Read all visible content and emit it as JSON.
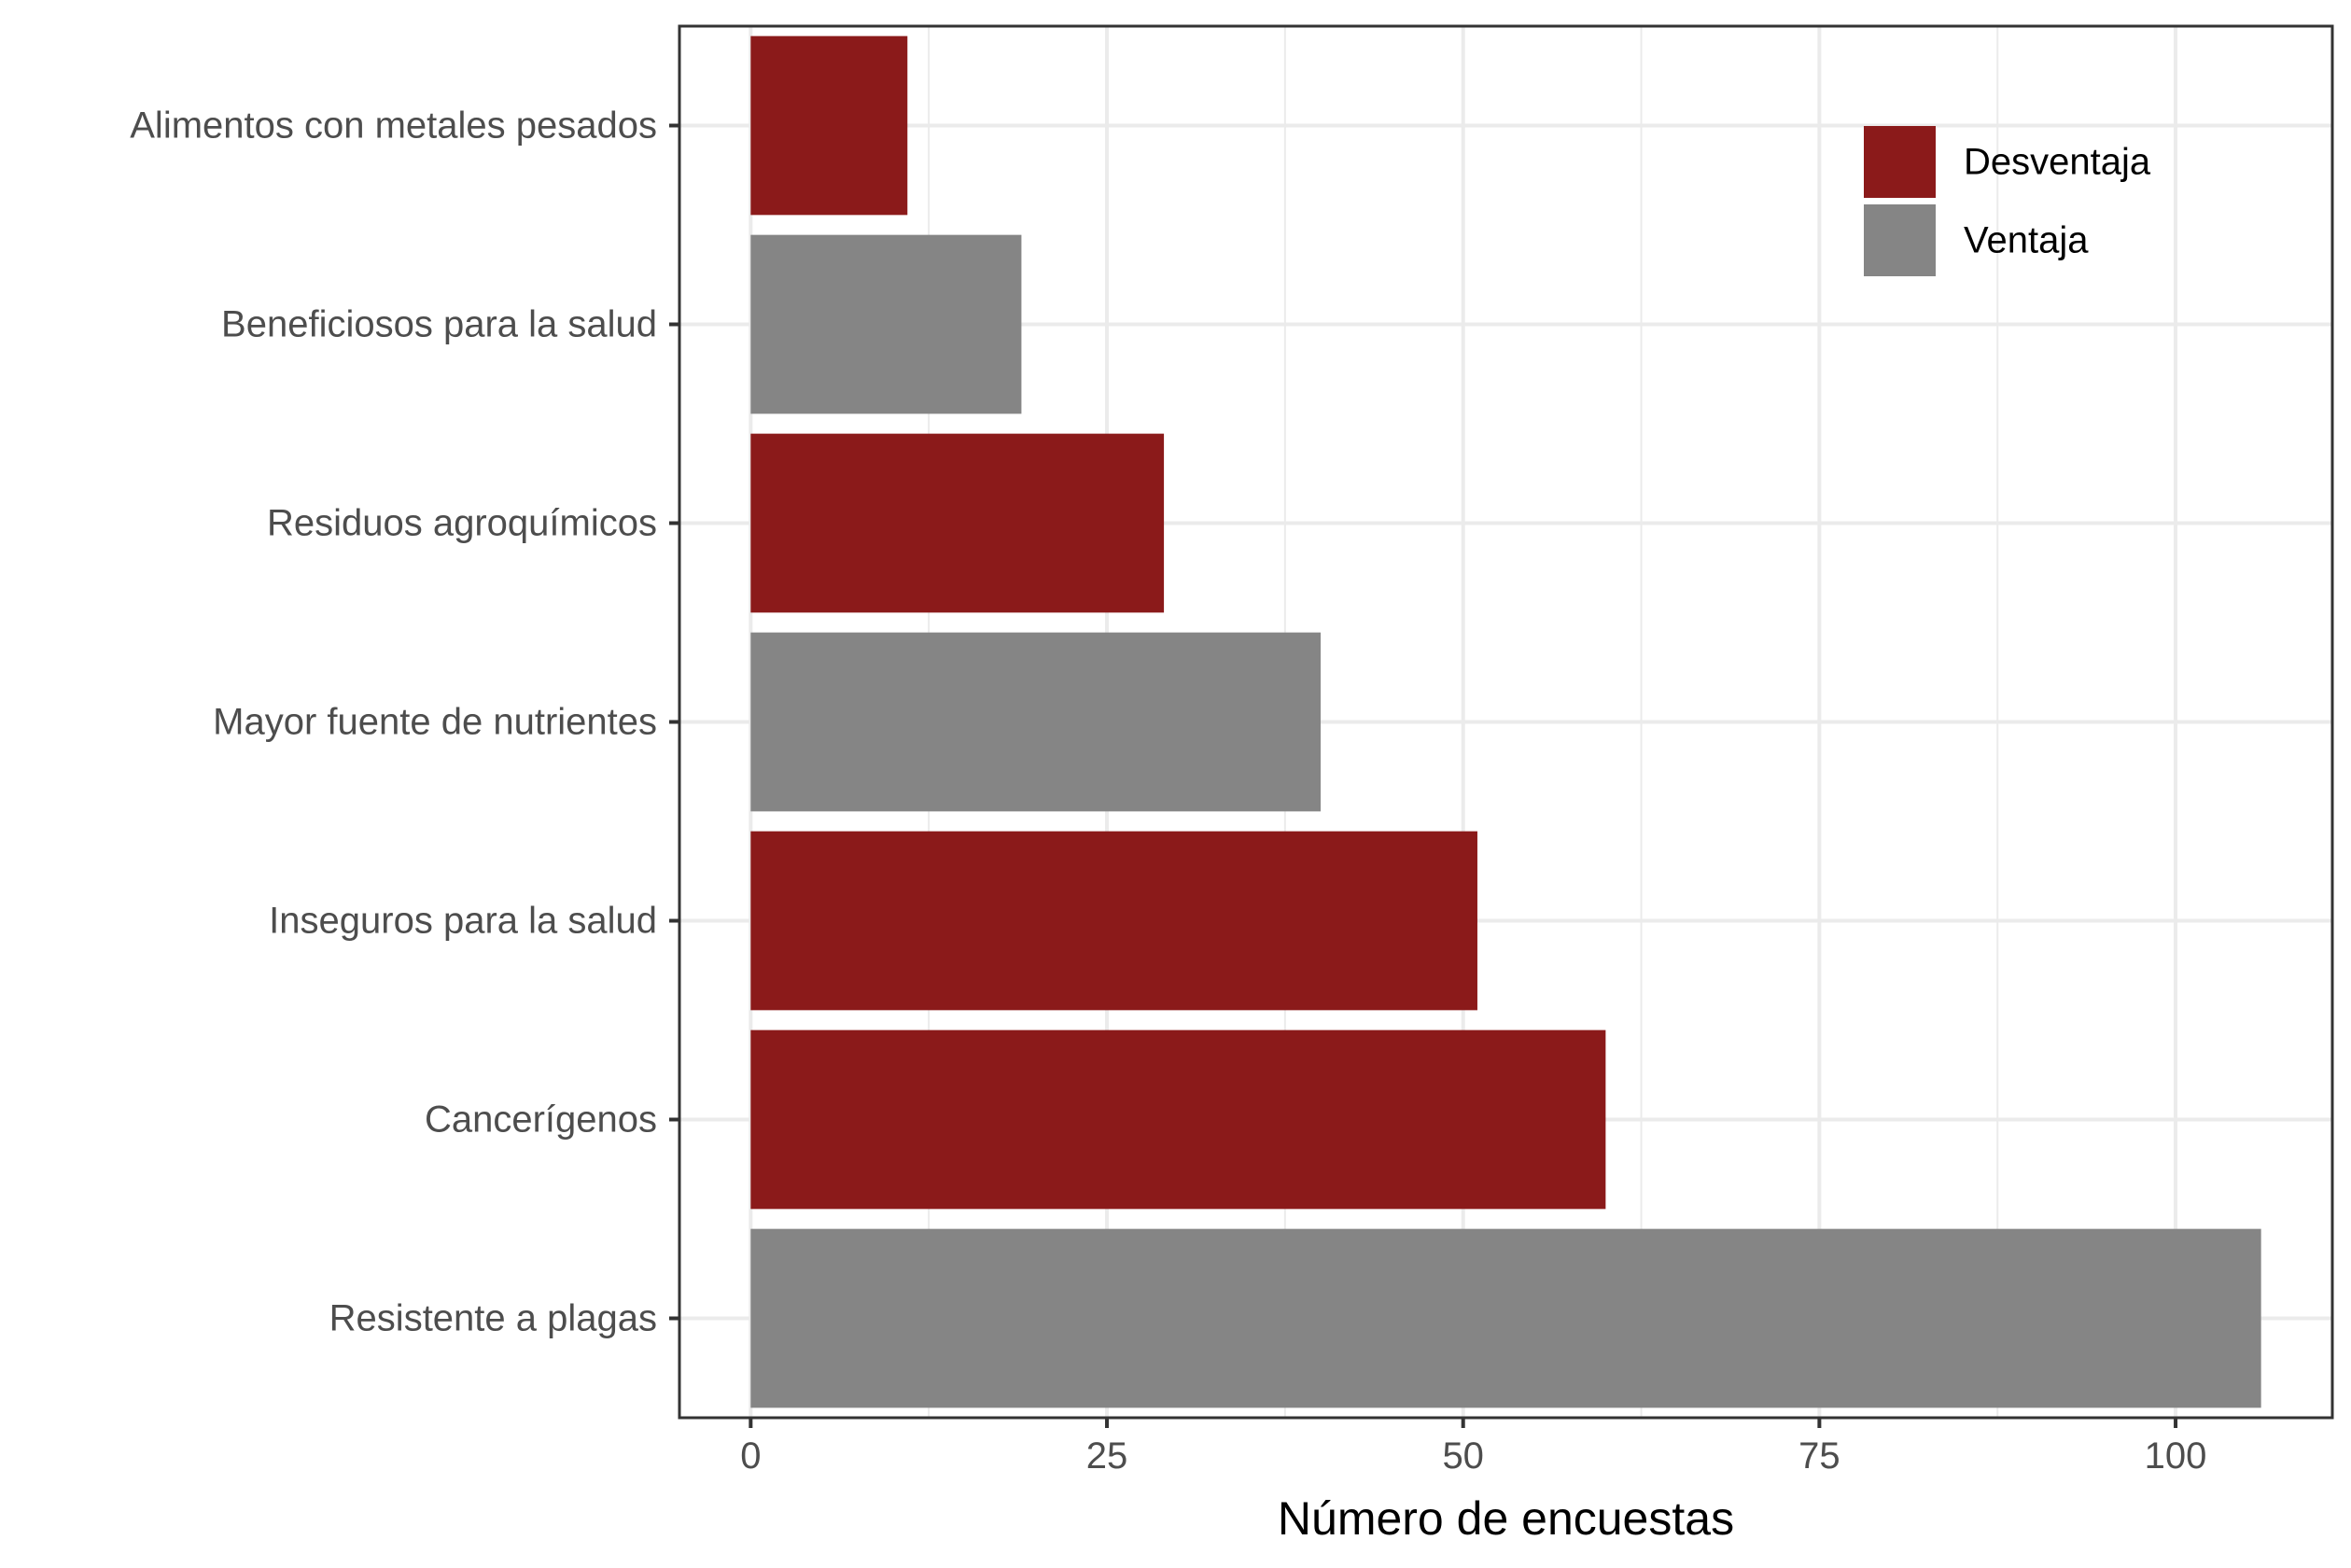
{
  "chart_data": {
    "type": "bar",
    "orientation": "horizontal",
    "title": "",
    "xlabel": "Número de encuestas",
    "ylabel": "",
    "xlim": [
      -5,
      111
    ],
    "xticks": [
      0,
      25,
      50,
      75,
      100
    ],
    "grid": true,
    "legend": {
      "position": "top-right",
      "entries": [
        {
          "name": "Desventaja",
          "color": "#8b1a1a"
        },
        {
          "name": "Ventaja",
          "color": "#858585"
        }
      ]
    },
    "categories": [
      "Alimentos con metales pesados",
      "Beneficiosos para la salud",
      "Residuos agroquímicos",
      "Mayor fuente de nutrientes",
      "Inseguros para la salud",
      "Cancerígenos",
      "Resistente a plagas"
    ],
    "values": [
      11,
      19,
      29,
      40,
      51,
      60,
      106
    ],
    "groups": [
      "Desventaja",
      "Ventaja",
      "Desventaja",
      "Ventaja",
      "Desventaja",
      "Desventaja",
      "Ventaja"
    ]
  }
}
